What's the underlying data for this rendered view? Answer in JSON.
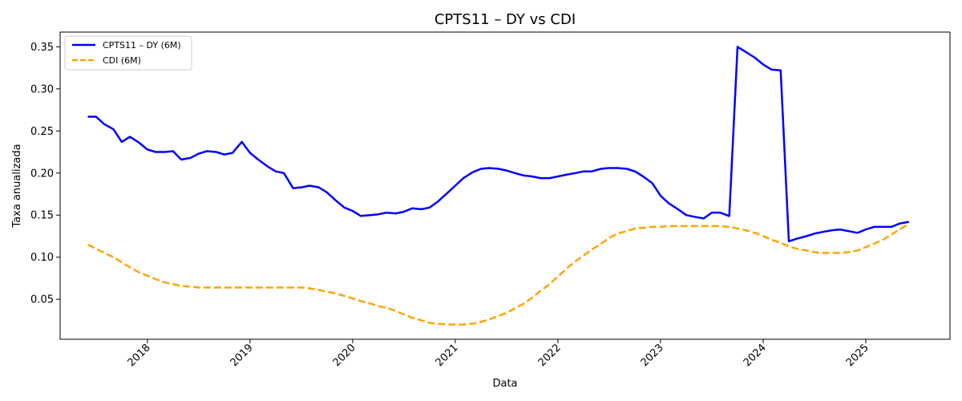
{
  "chart_data": {
    "type": "line",
    "title": "CPTS11 – DY vs CDI",
    "xlabel": "Data",
    "ylabel": "Taxa anualizada",
    "xlim": [
      2017.15,
      2025.82
    ],
    "ylim": [
      0.0025,
      0.3675
    ],
    "x_ticks": [
      2018,
      2019,
      2020,
      2021,
      2022,
      2023,
      2024,
      2025
    ],
    "x_tick_labels": [
      "2018",
      "2019",
      "2020",
      "2021",
      "2022",
      "2023",
      "2024",
      "2025"
    ],
    "y_ticks": [
      0.05,
      0.1,
      0.15,
      0.2,
      0.25,
      0.3,
      0.35
    ],
    "y_tick_labels": [
      "0.05",
      "0.10",
      "0.15",
      "0.20",
      "0.25",
      "0.30",
      "0.35"
    ],
    "grid": false,
    "legend_position": "top-left",
    "series": [
      {
        "name": "CPTS11 – DY (6M)",
        "color": "#0000ff",
        "style": "solid",
        "x": [
          2017.42,
          2017.5,
          2017.58,
          2017.67,
          2017.75,
          2017.83,
          2017.92,
          2018.0,
          2018.08,
          2018.17,
          2018.25,
          2018.33,
          2018.42,
          2018.5,
          2018.58,
          2018.67,
          2018.75,
          2018.83,
          2018.92,
          2019.0,
          2019.08,
          2019.17,
          2019.25,
          2019.33,
          2019.42,
          2019.5,
          2019.58,
          2019.67,
          2019.75,
          2019.83,
          2019.92,
          2020.0,
          2020.08,
          2020.17,
          2020.25,
          2020.33,
          2020.42,
          2020.5,
          2020.58,
          2020.67,
          2020.75,
          2020.83,
          2020.92,
          2021.0,
          2021.08,
          2021.17,
          2021.25,
          2021.33,
          2021.42,
          2021.5,
          2021.58,
          2021.67,
          2021.75,
          2021.83,
          2021.92,
          2022.0,
          2022.08,
          2022.17,
          2022.25,
          2022.33,
          2022.42,
          2022.5,
          2022.58,
          2022.67,
          2022.75,
          2022.83,
          2022.92,
          2023.0,
          2023.08,
          2023.17,
          2023.25,
          2023.33,
          2023.42,
          2023.5,
          2023.58,
          2023.67,
          2023.75,
          2023.83,
          2023.92,
          2024.0,
          2024.08,
          2024.17,
          2024.25,
          2024.33,
          2024.42,
          2024.5,
          2024.58,
          2024.67,
          2024.75,
          2024.83,
          2024.92,
          2025.0,
          2025.08,
          2025.17,
          2025.25,
          2025.33,
          2025.42
        ],
        "y": [
          0.267,
          0.267,
          0.258,
          0.252,
          0.237,
          0.243,
          0.236,
          0.228,
          0.225,
          0.225,
          0.226,
          0.216,
          0.218,
          0.223,
          0.226,
          0.225,
          0.222,
          0.224,
          0.237,
          0.224,
          0.216,
          0.208,
          0.202,
          0.2,
          0.182,
          0.183,
          0.185,
          0.183,
          0.177,
          0.168,
          0.159,
          0.155,
          0.149,
          0.15,
          0.151,
          0.153,
          0.152,
          0.154,
          0.158,
          0.157,
          0.159,
          0.166,
          0.176,
          0.185,
          0.194,
          0.201,
          0.205,
          0.206,
          0.205,
          0.203,
          0.2,
          0.197,
          0.196,
          0.194,
          0.194,
          0.196,
          0.198,
          0.2,
          0.202,
          0.202,
          0.205,
          0.206,
          0.206,
          0.205,
          0.202,
          0.196,
          0.188,
          0.173,
          0.164,
          0.157,
          0.15,
          0.148,
          0.146,
          0.153,
          0.153,
          0.149,
          0.35,
          0.344,
          0.337,
          0.329,
          0.323,
          0.322,
          0.119,
          0.122,
          0.125,
          0.128,
          0.13,
          0.132,
          0.133,
          0.131,
          0.129,
          0.133,
          0.136,
          0.136,
          0.136,
          0.14,
          0.142
        ]
      },
      {
        "name": "CDI (6M)",
        "color": "#ffa500",
        "style": "dashed",
        "x": [
          2017.42,
          2017.5,
          2017.58,
          2017.67,
          2017.75,
          2017.83,
          2017.92,
          2018.0,
          2018.08,
          2018.17,
          2018.25,
          2018.33,
          2018.42,
          2018.5,
          2018.58,
          2018.67,
          2018.75,
          2018.83,
          2018.92,
          2019.0,
          2019.08,
          2019.17,
          2019.25,
          2019.33,
          2019.42,
          2019.5,
          2019.58,
          2019.67,
          2019.75,
          2019.83,
          2019.92,
          2020.0,
          2020.08,
          2020.17,
          2020.25,
          2020.33,
          2020.42,
          2020.5,
          2020.58,
          2020.67,
          2020.75,
          2020.83,
          2020.92,
          2021.0,
          2021.08,
          2021.17,
          2021.25,
          2021.33,
          2021.42,
          2021.5,
          2021.58,
          2021.67,
          2021.75,
          2021.83,
          2021.92,
          2022.0,
          2022.08,
          2022.17,
          2022.25,
          2022.33,
          2022.42,
          2022.5,
          2022.58,
          2022.67,
          2022.75,
          2022.83,
          2022.92,
          2023.0,
          2023.08,
          2023.17,
          2023.25,
          2023.33,
          2023.42,
          2023.5,
          2023.58,
          2023.67,
          2023.75,
          2023.83,
          2023.92,
          2024.0,
          2024.08,
          2024.17,
          2024.25,
          2024.33,
          2024.42,
          2024.5,
          2024.58,
          2024.67,
          2024.75,
          2024.83,
          2024.92,
          2025.0,
          2025.08,
          2025.17,
          2025.25,
          2025.33,
          2025.42
        ],
        "y": [
          0.115,
          0.11,
          0.105,
          0.1,
          0.094,
          0.088,
          0.082,
          0.078,
          0.074,
          0.07,
          0.068,
          0.066,
          0.065,
          0.064,
          0.064,
          0.064,
          0.064,
          0.064,
          0.064,
          0.064,
          0.064,
          0.064,
          0.064,
          0.064,
          0.064,
          0.064,
          0.063,
          0.061,
          0.059,
          0.057,
          0.054,
          0.051,
          0.048,
          0.045,
          0.042,
          0.04,
          0.036,
          0.032,
          0.028,
          0.025,
          0.022,
          0.021,
          0.02,
          0.02,
          0.02,
          0.021,
          0.023,
          0.026,
          0.03,
          0.034,
          0.039,
          0.045,
          0.052,
          0.06,
          0.068,
          0.077,
          0.086,
          0.095,
          0.102,
          0.109,
          0.116,
          0.123,
          0.128,
          0.131,
          0.134,
          0.135,
          0.136,
          0.136,
          0.137,
          0.137,
          0.137,
          0.137,
          0.137,
          0.137,
          0.137,
          0.136,
          0.134,
          0.132,
          0.129,
          0.125,
          0.121,
          0.117,
          0.113,
          0.11,
          0.108,
          0.106,
          0.105,
          0.105,
          0.105,
          0.106,
          0.108,
          0.112,
          0.116,
          0.121,
          0.127,
          0.133,
          0.14
        ]
      }
    ]
  }
}
